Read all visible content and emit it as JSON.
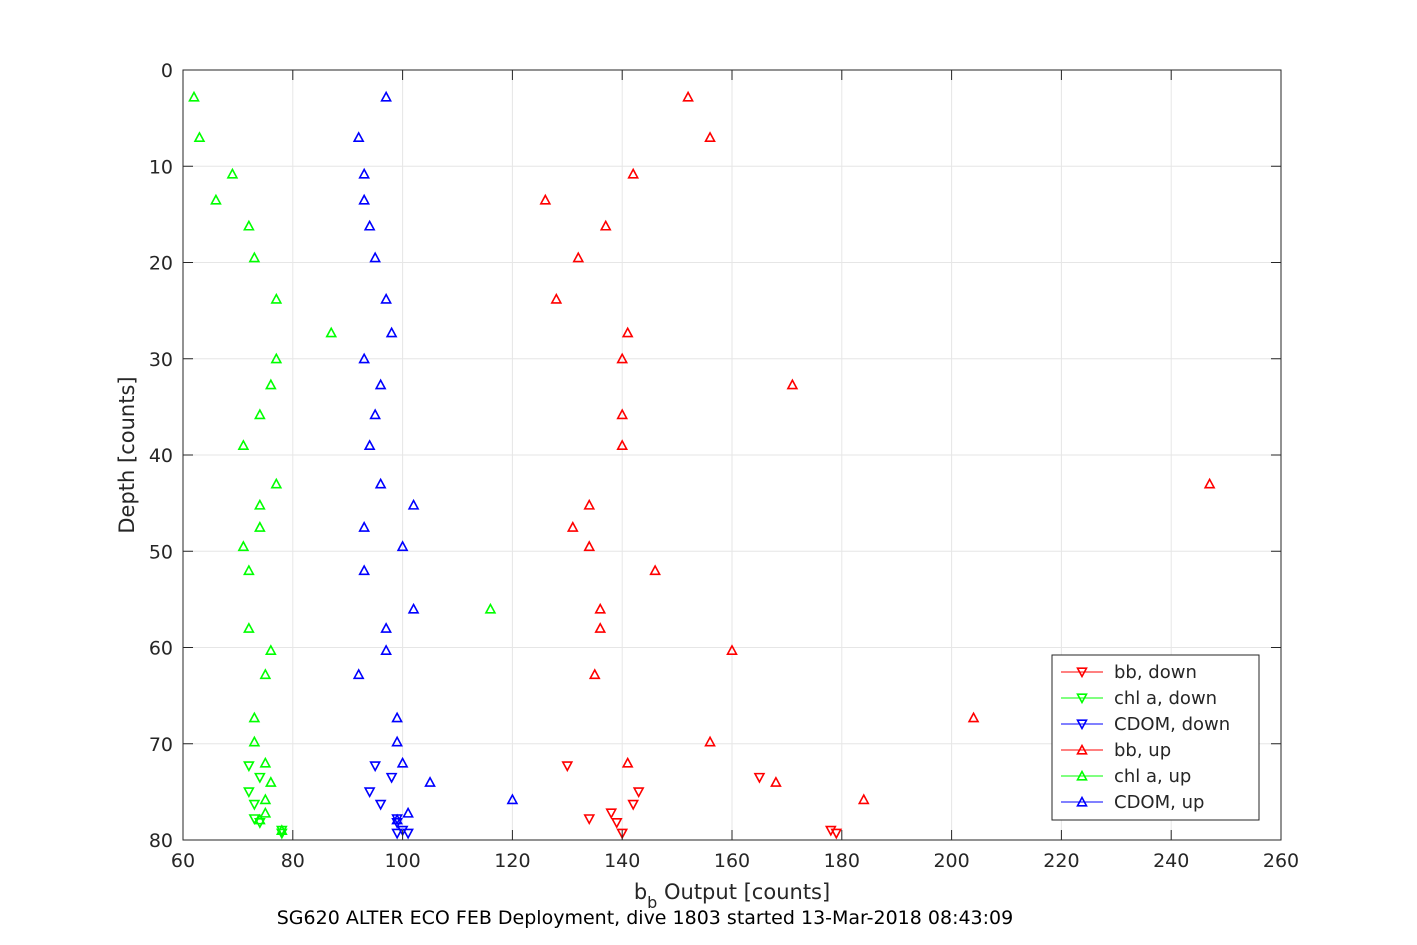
{
  "chart_data": {
    "type": "scatter",
    "caption": "SG620 ALTER ECO FEB Deployment, dive 1803 started 13-Mar-2018 08:43:09",
    "xlabel_main": "b",
    "xlabel_sub": "b",
    "xlabel_rest": " Output [counts]",
    "ylabel": "Depth [counts]",
    "xlim": [
      60,
      260
    ],
    "ylim": [
      0,
      80
    ],
    "y_reversed": true,
    "grid": true,
    "xticks": [
      60,
      80,
      100,
      120,
      140,
      160,
      180,
      200,
      220,
      240,
      260
    ],
    "yticks": [
      0,
      10,
      20,
      30,
      40,
      50,
      60,
      70,
      80
    ],
    "legend_position": "bottom-right",
    "series": [
      {
        "name": "bb, down",
        "color": "#ff0000",
        "marker": "triangle-down",
        "points": [
          [
            130,
            72.3
          ],
          [
            134,
            77.8
          ],
          [
            138,
            77.2
          ],
          [
            139,
            78.2
          ],
          [
            140,
            79.3
          ],
          [
            142,
            76.3
          ],
          [
            143,
            75
          ],
          [
            165,
            73.5
          ],
          [
            178,
            79
          ],
          [
            179,
            79.3
          ]
        ]
      },
      {
        "name": "chl a, down",
        "color": "#00ff00",
        "marker": "triangle-down",
        "points": [
          [
            72,
            72.3
          ],
          [
            72,
            75
          ],
          [
            73,
            76.3
          ],
          [
            73,
            77.8
          ],
          [
            74,
            73.5
          ],
          [
            74,
            78.2
          ],
          [
            78,
            79
          ],
          [
            78,
            79.3
          ]
        ]
      },
      {
        "name": "CDOM, down",
        "color": "#0000ff",
        "marker": "triangle-down",
        "points": [
          [
            95,
            72.3
          ],
          [
            98,
            73.5
          ],
          [
            94,
            75
          ],
          [
            96,
            76.3
          ],
          [
            99,
            77.8
          ],
          [
            99,
            78.2
          ],
          [
            100,
            79
          ],
          [
            101,
            79.3
          ],
          [
            99,
            79.3
          ]
        ]
      },
      {
        "name": "bb, up",
        "color": "#ff0000",
        "marker": "triangle-up",
        "points": [
          [
            152,
            2.8
          ],
          [
            156,
            7
          ],
          [
            142,
            10.8
          ],
          [
            126,
            13.5
          ],
          [
            137,
            16.2
          ],
          [
            132,
            19.5
          ],
          [
            128,
            23.8
          ],
          [
            141,
            27.3
          ],
          [
            140,
            30
          ],
          [
            171,
            32.7
          ],
          [
            140,
            35.8
          ],
          [
            140,
            39
          ],
          [
            247,
            43
          ],
          [
            134,
            45.2
          ],
          [
            131,
            47.5
          ],
          [
            134,
            49.5
          ],
          [
            146,
            52
          ],
          [
            136,
            56
          ],
          [
            136,
            58
          ],
          [
            160,
            60.3
          ],
          [
            135,
            62.8
          ],
          [
            204,
            67.3
          ],
          [
            156,
            69.8
          ],
          [
            141,
            72
          ],
          [
            168,
            74
          ],
          [
            184,
            75.8
          ]
        ]
      },
      {
        "name": "chl a, up",
        "color": "#00ff00",
        "marker": "triangle-up",
        "points": [
          [
            62,
            2.8
          ],
          [
            63,
            7
          ],
          [
            69,
            10.8
          ],
          [
            66,
            13.5
          ],
          [
            72,
            16.2
          ],
          [
            73,
            19.5
          ],
          [
            77,
            23.8
          ],
          [
            87,
            27.3
          ],
          [
            77,
            30
          ],
          [
            76,
            32.7
          ],
          [
            74,
            35.8
          ],
          [
            71,
            39
          ],
          [
            77,
            43
          ],
          [
            74,
            45.2
          ],
          [
            74,
            47.5
          ],
          [
            71,
            49.5
          ],
          [
            72,
            52
          ],
          [
            116,
            56
          ],
          [
            72,
            58
          ],
          [
            76,
            60.3
          ],
          [
            75,
            62.8
          ],
          [
            73,
            67.3
          ],
          [
            73,
            69.8
          ],
          [
            75,
            72
          ],
          [
            76,
            74
          ],
          [
            75,
            75.8
          ],
          [
            75,
            77.2
          ],
          [
            74,
            77.9
          ],
          [
            78,
            79
          ]
        ]
      },
      {
        "name": "CDOM, up",
        "color": "#0000ff",
        "marker": "triangle-up",
        "points": [
          [
            97,
            2.8
          ],
          [
            92,
            7
          ],
          [
            93,
            10.8
          ],
          [
            93,
            13.5
          ],
          [
            94,
            16.2
          ],
          [
            95,
            19.5
          ],
          [
            97,
            23.8
          ],
          [
            98,
            27.3
          ],
          [
            93,
            30
          ],
          [
            96,
            32.7
          ],
          [
            95,
            35.8
          ],
          [
            94,
            39
          ],
          [
            96,
            43
          ],
          [
            102,
            45.2
          ],
          [
            93,
            47.5
          ],
          [
            100,
            49.5
          ],
          [
            93,
            52
          ],
          [
            102,
            56
          ],
          [
            97,
            58
          ],
          [
            97,
            60.3
          ],
          [
            92,
            62.8
          ],
          [
            99,
            67.3
          ],
          [
            99,
            69.8
          ],
          [
            100,
            72
          ],
          [
            105,
            74
          ],
          [
            120,
            75.8
          ],
          [
            101,
            77.2
          ],
          [
            99,
            77.9
          ]
        ]
      }
    ]
  }
}
